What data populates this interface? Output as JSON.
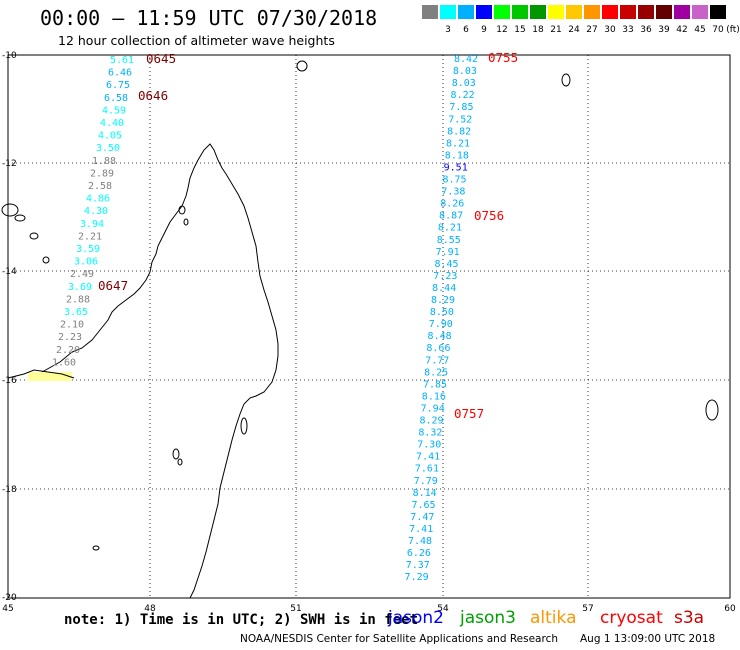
{
  "header": {
    "title": "00:00 – 11:59 UTC 07/30/2018",
    "subtitle": "12 hour collection of altimeter wave heights"
  },
  "legend": {
    "unit": "(ft)",
    "items": [
      {
        "label": "",
        "color": "#808080"
      },
      {
        "label": "3",
        "color": "#00ffff"
      },
      {
        "label": "6",
        "color": "#00b0ff"
      },
      {
        "label": "9",
        "color": "#0000ff"
      },
      {
        "label": "12",
        "color": "#00ff00"
      },
      {
        "label": "15",
        "color": "#00c800"
      },
      {
        "label": "18",
        "color": "#009600"
      },
      {
        "label": "21",
        "color": "#ffff00"
      },
      {
        "label": "24",
        "color": "#ffc800"
      },
      {
        "label": "27",
        "color": "#ff9600"
      },
      {
        "label": "30",
        "color": "#ff0000"
      },
      {
        "label": "33",
        "color": "#c80000"
      },
      {
        "label": "36",
        "color": "#960000"
      },
      {
        "label": "39",
        "color": "#640000"
      },
      {
        "label": "42",
        "color": "#a000a0"
      },
      {
        "label": "45",
        "color": "#c864c8"
      },
      {
        "label": "70",
        "color": "#000000"
      }
    ]
  },
  "map": {
    "lon_labels": [
      "45",
      "48",
      "51",
      "54",
      "57",
      "60"
    ],
    "lat_labels": [
      "-10",
      "-12",
      "-14",
      "-16",
      "-18",
      "-20"
    ],
    "time_labels": [
      {
        "text": "0645",
        "color": "#800000"
      },
      {
        "text": "0646",
        "color": "#800000"
      },
      {
        "text": "0647",
        "color": "#800000"
      },
      {
        "text": "0755",
        "color": "#ff0000"
      },
      {
        "text": "0756",
        "color": "#ff0000"
      },
      {
        "text": "0757",
        "color": "#ff0000"
      }
    ],
    "track_west": [
      {
        "v": "5.61",
        "c": "#00ffff"
      },
      {
        "v": "6.46",
        "c": "#00b0ff"
      },
      {
        "v": "6.75",
        "c": "#00b0ff"
      },
      {
        "v": "6.58",
        "c": "#00b0ff"
      },
      {
        "v": "4.59",
        "c": "#00ffff"
      },
      {
        "v": "4.40",
        "c": "#00ffff"
      },
      {
        "v": "4.05",
        "c": "#00ffff"
      },
      {
        "v": "3.50",
        "c": "#00ffff"
      },
      {
        "v": "1.88",
        "c": "#808080"
      },
      {
        "v": "2.89",
        "c": "#808080"
      },
      {
        "v": "2.58",
        "c": "#808080"
      },
      {
        "v": "4.86",
        "c": "#00ffff"
      },
      {
        "v": "4.30",
        "c": "#00ffff"
      },
      {
        "v": "3.94",
        "c": "#00ffff"
      },
      {
        "v": "2.21",
        "c": "#808080"
      },
      {
        "v": "3.59",
        "c": "#00ffff"
      },
      {
        "v": "3.06",
        "c": "#00ffff"
      },
      {
        "v": "2.49",
        "c": "#808080"
      },
      {
        "v": "3.69",
        "c": "#00ffff"
      },
      {
        "v": "2.88",
        "c": "#808080"
      },
      {
        "v": "3.65",
        "c": "#00ffff"
      },
      {
        "v": "2.10",
        "c": "#808080"
      },
      {
        "v": "2.23",
        "c": "#808080"
      },
      {
        "v": "2.20",
        "c": "#808080"
      },
      {
        "v": "1.60",
        "c": "#808080"
      }
    ],
    "track_east": [
      {
        "v": "8.42",
        "c": "#00b0ff"
      },
      {
        "v": "8.03",
        "c": "#00b0ff"
      },
      {
        "v": "8.03",
        "c": "#00b0ff"
      },
      {
        "v": "8.22",
        "c": "#00b0ff"
      },
      {
        "v": "7.85",
        "c": "#00b0ff"
      },
      {
        "v": "7.52",
        "c": "#00b0ff"
      },
      {
        "v": "8.82",
        "c": "#00b0ff"
      },
      {
        "v": "8.21",
        "c": "#00b0ff"
      },
      {
        "v": "8.18",
        "c": "#00b0ff"
      },
      {
        "v": "9.51",
        "c": "#0000ff"
      },
      {
        "v": "8.75",
        "c": "#00b0ff"
      },
      {
        "v": "7.38",
        "c": "#00b0ff"
      },
      {
        "v": "8.26",
        "c": "#00b0ff"
      },
      {
        "v": "8.87",
        "c": "#00b0ff"
      },
      {
        "v": "8.21",
        "c": "#00b0ff"
      },
      {
        "v": "8.55",
        "c": "#00b0ff"
      },
      {
        "v": "7.91",
        "c": "#00b0ff"
      },
      {
        "v": "8.45",
        "c": "#00b0ff"
      },
      {
        "v": "7.23",
        "c": "#00b0ff"
      },
      {
        "v": "8.44",
        "c": "#00b0ff"
      },
      {
        "v": "8.29",
        "c": "#00b0ff"
      },
      {
        "v": "8.50",
        "c": "#00b0ff"
      },
      {
        "v": "7.90",
        "c": "#00b0ff"
      },
      {
        "v": "8.48",
        "c": "#00b0ff"
      },
      {
        "v": "8.66",
        "c": "#00b0ff"
      },
      {
        "v": "7.77",
        "c": "#00b0ff"
      },
      {
        "v": "8.25",
        "c": "#00b0ff"
      },
      {
        "v": "7.85",
        "c": "#00b0ff"
      },
      {
        "v": "8.16",
        "c": "#00b0ff"
      },
      {
        "v": "7.94",
        "c": "#00b0ff"
      },
      {
        "v": "8.29",
        "c": "#00b0ff"
      },
      {
        "v": "8.32",
        "c": "#00b0ff"
      },
      {
        "v": "7.30",
        "c": "#00b0ff"
      },
      {
        "v": "7.41",
        "c": "#00b0ff"
      },
      {
        "v": "7.61",
        "c": "#00b0ff"
      },
      {
        "v": "7.79",
        "c": "#00b0ff"
      },
      {
        "v": "8.14",
        "c": "#00b0ff"
      },
      {
        "v": "7.65",
        "c": "#00b0ff"
      },
      {
        "v": "7.47",
        "c": "#00b0ff"
      },
      {
        "v": "7.41",
        "c": "#00b0ff"
      },
      {
        "v": "7.48",
        "c": "#00b0ff"
      },
      {
        "v": "6.26",
        "c": "#00b0ff"
      },
      {
        "v": "7.37",
        "c": "#00b0ff"
      },
      {
        "v": "7.29",
        "c": "#00b0ff"
      }
    ]
  },
  "footer": {
    "note": "note: 1) Time is in UTC; 2) SWH is in feet",
    "satellites": [
      {
        "name": "jason2",
        "color": "#0000ff"
      },
      {
        "name": "jason3",
        "color": "#00a000"
      },
      {
        "name": "altika",
        "color": "#ff9600"
      },
      {
        "name": "cryosat",
        "color": "#ff0000"
      },
      {
        "name": "s3a",
        "color": "#c80000"
      }
    ],
    "credit": "NOAA/NESDIS Center for Satellite Applications and Research",
    "timestamp": "Aug  1 13:09:00 UTC 2018"
  }
}
